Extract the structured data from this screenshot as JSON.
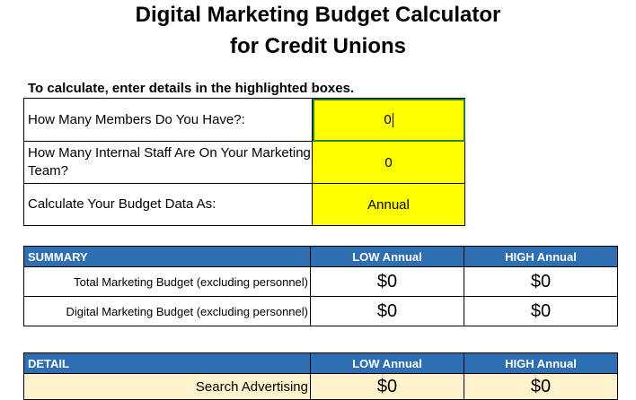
{
  "title_line1": "Digital Marketing Budget Calculator",
  "title_line2": "for Credit Unions",
  "instructions": "To calculate, enter details in the highlighted boxes.",
  "inputs": [
    {
      "label": "How Many Members Do You Have?:",
      "value": "0"
    },
    {
      "label": "How Many Internal Staff Are On Your Marketing Team?",
      "value": "0"
    },
    {
      "label": "Calculate Your Budget Data As:",
      "value": "Annual"
    }
  ],
  "summary": {
    "header": "SUMMARY",
    "col_low": "LOW Annual",
    "col_high": "HIGH Annual",
    "rows": [
      {
        "label": "Total Marketing Budget (excluding personnel)",
        "low": "$0",
        "high": "$0"
      },
      {
        "label": "Digital Marketing Budget (excluding personnel)",
        "low": "$0",
        "high": "$0"
      }
    ]
  },
  "detail": {
    "header": "DETAIL",
    "col_low": "LOW Annual",
    "col_high": "HIGH Annual",
    "rows": [
      {
        "label": "Search Advertising",
        "low": "$0",
        "high": "$0"
      }
    ]
  },
  "colors": {
    "header_blue": "#2e6fb4",
    "input_yellow": "#ffff00",
    "detail_row": "#fff2cc"
  }
}
